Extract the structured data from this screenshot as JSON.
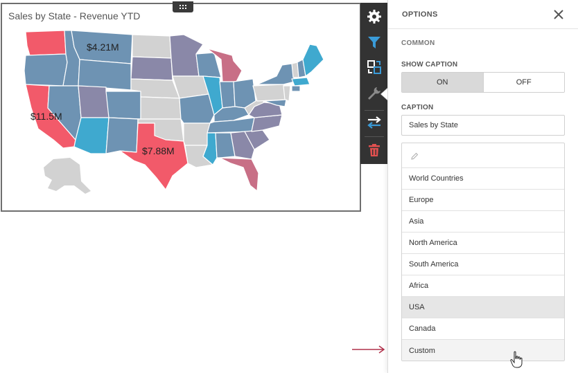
{
  "widget": {
    "title": "Sales by State - Revenue YTD",
    "labels": {
      "california": "$11.5M",
      "texas": "$7.88M",
      "montana": "$4.21M"
    },
    "colors": {
      "high": "#f25a6a",
      "mid_high": "#c86f86",
      "mid": "#8a88a8",
      "mid_low": "#6e93b3",
      "low": "#3fa9cf",
      "none": "#d2d2d2"
    }
  },
  "toolbar": {
    "buttons": [
      {
        "name": "gear-icon"
      },
      {
        "name": "filter-icon"
      },
      {
        "name": "convert-icon"
      },
      {
        "name": "wrench-icon"
      },
      {
        "name": "swap-icon"
      },
      {
        "name": "trash-icon"
      }
    ]
  },
  "panel": {
    "title": "OPTIONS",
    "section": "COMMON",
    "show_caption_label": "SHOW CAPTION",
    "toggle_on": "ON",
    "toggle_off": "OFF",
    "caption_label": "CAPTION",
    "caption_value": "Sales by State",
    "map_items": [
      "World Countries",
      "Europe",
      "Asia",
      "North America",
      "South America",
      "Africa",
      "USA",
      "Canada",
      "Custom"
    ],
    "selected_item": "USA"
  }
}
